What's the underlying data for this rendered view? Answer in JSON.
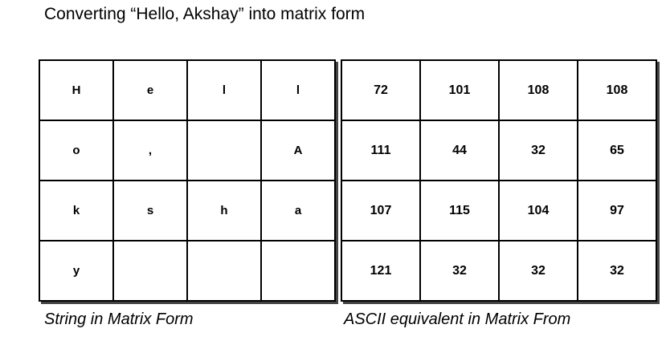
{
  "title": "Converting “Hello, Akshay” into matrix form",
  "string_matrix": [
    [
      "H",
      "e",
      "l",
      "l"
    ],
    [
      "o",
      ",",
      "",
      "A"
    ],
    [
      "k",
      "s",
      "h",
      "a"
    ],
    [
      "y",
      "",
      "",
      ""
    ]
  ],
  "ascii_matrix": [
    [
      "72",
      "101",
      "108",
      "108"
    ],
    [
      "111",
      "44",
      "32",
      "65"
    ],
    [
      "107",
      "115",
      "104",
      "97"
    ],
    [
      "121",
      "32",
      "32",
      "32"
    ]
  ],
  "captions": {
    "left": "String in Matrix Form",
    "right": "ASCII equivalent in Matrix From"
  }
}
